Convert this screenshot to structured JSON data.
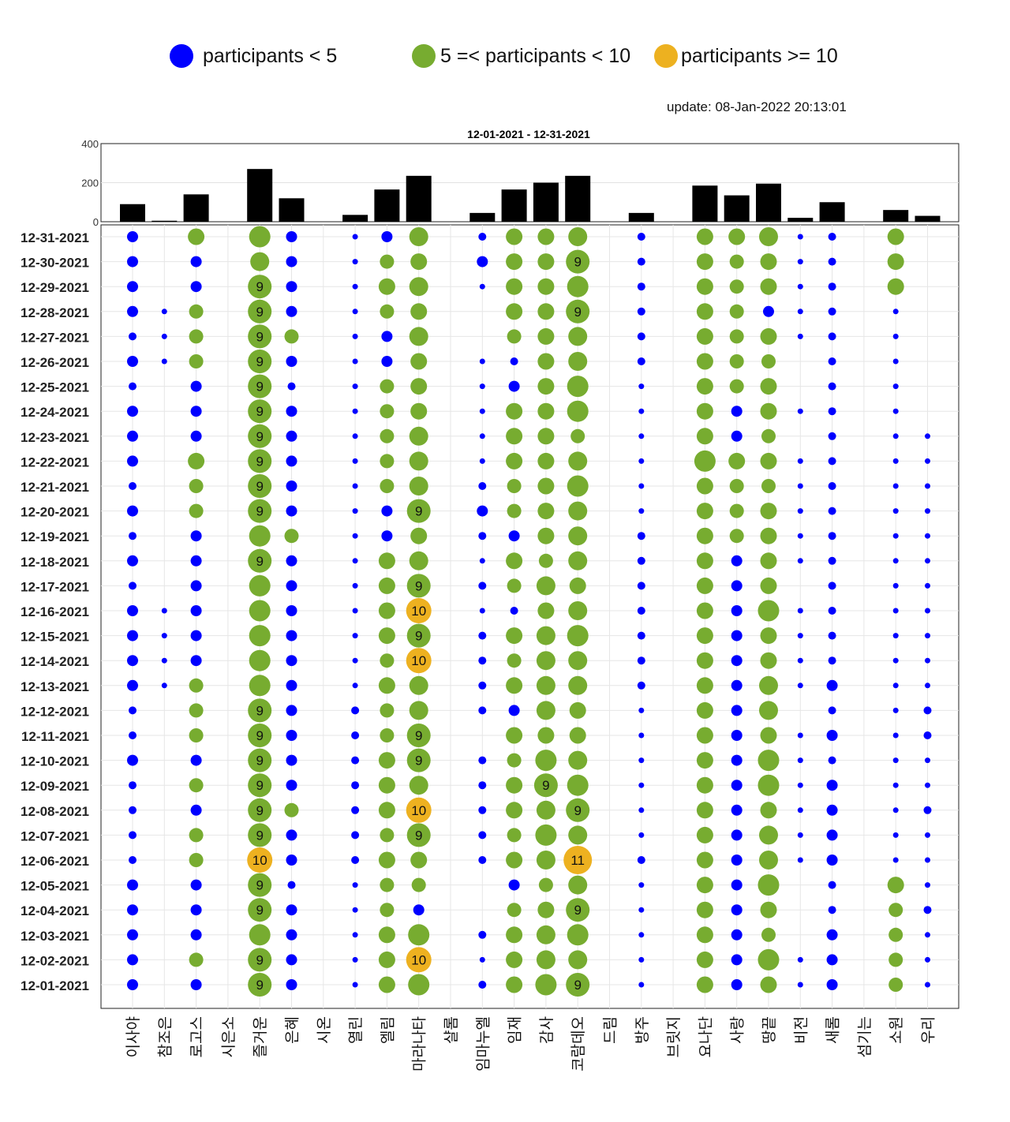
{
  "legend": {
    "blue": "participants < 5",
    "green": "5 =< participants < 10",
    "orange": "participants >= 10"
  },
  "colors": {
    "blue": "#0000ff",
    "green": "#77ac30",
    "orange": "#edb120",
    "bar": "#000000"
  },
  "update": "update: 08-Jan-2022 20:13:01",
  "chart_data": {
    "type": "scatter",
    "title": "12-01-2021  - 12-31-2021",
    "categories": [
      "이사야",
      "참조은",
      "로고스",
      "시은소",
      "즐거운",
      "은혜",
      "시온",
      "열린",
      "엘림",
      "마라나타",
      "샬롬",
      "임마누엘",
      "임재",
      "감사",
      "코람데오",
      "드림",
      "방주",
      "브릿지",
      "요나단",
      "사랑",
      "땅끝",
      "비전",
      "새롬",
      "섬기는",
      "소원",
      "우리"
    ],
    "totals": [
      90,
      5,
      140,
      0,
      270,
      120,
      0,
      35,
      165,
      235,
      0,
      45,
      165,
      200,
      235,
      0,
      45,
      0,
      185,
      135,
      195,
      20,
      100,
      0,
      60,
      30
    ],
    "bar_yticks": [
      0,
      200,
      400
    ],
    "bar_ylim": [
      0,
      400
    ],
    "dates": [
      "12-31-2021",
      "12-30-2021",
      "12-29-2021",
      "12-28-2021",
      "12-27-2021",
      "12-26-2021",
      "12-25-2021",
      "12-24-2021",
      "12-23-2021",
      "12-22-2021",
      "12-21-2021",
      "12-20-2021",
      "12-19-2021",
      "12-18-2021",
      "12-17-2021",
      "12-16-2021",
      "12-15-2021",
      "12-14-2021",
      "12-13-2021",
      "12-12-2021",
      "12-11-2021",
      "12-10-2021",
      "12-09-2021",
      "12-08-2021",
      "12-07-2021",
      "12-06-2021",
      "12-05-2021",
      "12-04-2021",
      "12-03-2021",
      "12-02-2021",
      "12-01-2021"
    ],
    "participants": [
      [
        3,
        0,
        6,
        0,
        8,
        3,
        0,
        1,
        3,
        7,
        0,
        2,
        6,
        6,
        7,
        0,
        2,
        0,
        6,
        6,
        7,
        1,
        2,
        0,
        6,
        0
      ],
      [
        3,
        0,
        3,
        0,
        7,
        3,
        0,
        1,
        5,
        6,
        0,
        3,
        6,
        6,
        9,
        0,
        2,
        0,
        6,
        5,
        6,
        1,
        2,
        0,
        6,
        0
      ],
      [
        3,
        0,
        3,
        0,
        9,
        3,
        0,
        1,
        6,
        7,
        0,
        1,
        6,
        6,
        8,
        0,
        2,
        0,
        6,
        5,
        6,
        1,
        2,
        0,
        6,
        0
      ],
      [
        3,
        1,
        5,
        0,
        9,
        3,
        0,
        1,
        5,
        6,
        0,
        0,
        6,
        6,
        9,
        0,
        2,
        0,
        6,
        5,
        3,
        1,
        2,
        0,
        1,
        0
      ],
      [
        2,
        1,
        5,
        0,
        9,
        5,
        0,
        1,
        3,
        7,
        0,
        0,
        5,
        6,
        7,
        0,
        2,
        0,
        6,
        5,
        6,
        1,
        2,
        0,
        1,
        0
      ],
      [
        3,
        1,
        5,
        0,
        9,
        3,
        0,
        1,
        3,
        6,
        0,
        1,
        2,
        6,
        7,
        0,
        2,
        0,
        6,
        5,
        5,
        0,
        2,
        0,
        1,
        0
      ],
      [
        2,
        0,
        3,
        0,
        9,
        2,
        0,
        1,
        5,
        6,
        0,
        1,
        3,
        6,
        8,
        0,
        1,
        0,
        6,
        5,
        6,
        0,
        2,
        0,
        1,
        0
      ],
      [
        3,
        0,
        3,
        0,
        9,
        3,
        0,
        1,
        5,
        6,
        0,
        1,
        6,
        6,
        8,
        0,
        1,
        0,
        6,
        3,
        6,
        1,
        2,
        0,
        1,
        0
      ],
      [
        3,
        0,
        3,
        0,
        9,
        3,
        0,
        1,
        5,
        7,
        0,
        1,
        6,
        6,
        5,
        0,
        1,
        0,
        6,
        3,
        5,
        0,
        2,
        0,
        1,
        1
      ],
      [
        3,
        0,
        6,
        0,
        9,
        3,
        0,
        1,
        5,
        7,
        0,
        1,
        6,
        6,
        7,
        0,
        1,
        0,
        8,
        6,
        6,
        1,
        2,
        0,
        1,
        1
      ],
      [
        2,
        0,
        5,
        0,
        9,
        3,
        0,
        1,
        5,
        7,
        0,
        2,
        5,
        6,
        8,
        0,
        1,
        0,
        6,
        5,
        5,
        1,
        2,
        0,
        1,
        1
      ],
      [
        3,
        0,
        5,
        0,
        9,
        3,
        0,
        1,
        3,
        9,
        0,
        3,
        5,
        6,
        7,
        0,
        1,
        0,
        6,
        5,
        6,
        1,
        2,
        0,
        1,
        1
      ],
      [
        2,
        0,
        3,
        0,
        8,
        5,
        0,
        1,
        3,
        6,
        0,
        2,
        3,
        6,
        7,
        0,
        2,
        0,
        6,
        5,
        6,
        1,
        2,
        0,
        1,
        1
      ],
      [
        3,
        0,
        3,
        0,
        9,
        3,
        0,
        1,
        6,
        7,
        0,
        1,
        6,
        5,
        7,
        0,
        2,
        0,
        6,
        3,
        6,
        1,
        2,
        0,
        1,
        1
      ],
      [
        2,
        0,
        3,
        0,
        8,
        3,
        0,
        1,
        6,
        9,
        0,
        2,
        5,
        7,
        6,
        0,
        2,
        0,
        6,
        3,
        6,
        0,
        2,
        0,
        1,
        1
      ],
      [
        3,
        1,
        3,
        0,
        8,
        3,
        0,
        1,
        6,
        10,
        0,
        1,
        2,
        6,
        7,
        0,
        2,
        0,
        6,
        3,
        8,
        1,
        2,
        0,
        1,
        1
      ],
      [
        3,
        1,
        3,
        0,
        8,
        3,
        0,
        1,
        6,
        9,
        0,
        2,
        6,
        7,
        8,
        0,
        2,
        0,
        6,
        3,
        6,
        1,
        2,
        0,
        1,
        1
      ],
      [
        3,
        1,
        3,
        0,
        8,
        3,
        0,
        1,
        5,
        10,
        0,
        2,
        5,
        7,
        7,
        0,
        2,
        0,
        6,
        3,
        6,
        1,
        2,
        0,
        1,
        1
      ],
      [
        3,
        1,
        5,
        0,
        8,
        3,
        0,
        1,
        6,
        7,
        0,
        2,
        6,
        7,
        7,
        0,
        2,
        0,
        6,
        3,
        7,
        1,
        3,
        0,
        1,
        1
      ],
      [
        2,
        0,
        5,
        0,
        9,
        3,
        0,
        2,
        5,
        7,
        0,
        2,
        3,
        7,
        6,
        0,
        1,
        0,
        6,
        3,
        7,
        0,
        2,
        0,
        1,
        2
      ],
      [
        2,
        0,
        5,
        0,
        9,
        3,
        0,
        2,
        5,
        9,
        0,
        0,
        6,
        6,
        6,
        0,
        1,
        0,
        6,
        3,
        6,
        1,
        3,
        0,
        1,
        2
      ],
      [
        3,
        0,
        3,
        0,
        9,
        3,
        0,
        2,
        6,
        9,
        0,
        2,
        5,
        8,
        7,
        0,
        1,
        0,
        6,
        3,
        8,
        1,
        2,
        0,
        1,
        1
      ],
      [
        2,
        0,
        5,
        0,
        9,
        3,
        0,
        2,
        6,
        7,
        0,
        2,
        6,
        9,
        8,
        0,
        1,
        0,
        6,
        3,
        8,
        1,
        3,
        0,
        1,
        1
      ],
      [
        2,
        0,
        3,
        0,
        9,
        5,
        0,
        2,
        6,
        10,
        0,
        2,
        6,
        7,
        9,
        0,
        1,
        0,
        6,
        3,
        6,
        1,
        3,
        0,
        1,
        2
      ],
      [
        2,
        0,
        5,
        0,
        9,
        3,
        0,
        2,
        5,
        9,
        0,
        2,
        5,
        8,
        7,
        0,
        1,
        0,
        6,
        3,
        7,
        1,
        3,
        0,
        1,
        1
      ],
      [
        2,
        0,
        5,
        0,
        10,
        3,
        0,
        2,
        6,
        6,
        0,
        2,
        6,
        7,
        11,
        0,
        2,
        0,
        6,
        3,
        7,
        1,
        3,
        0,
        1,
        1
      ],
      [
        3,
        0,
        3,
        0,
        9,
        2,
        0,
        1,
        5,
        5,
        0,
        0,
        3,
        5,
        7,
        0,
        1,
        0,
        6,
        3,
        8,
        0,
        2,
        0,
        6,
        1
      ],
      [
        3,
        0,
        3,
        0,
        9,
        3,
        0,
        1,
        5,
        3,
        0,
        0,
        5,
        6,
        9,
        0,
        1,
        0,
        6,
        3,
        6,
        0,
        2,
        0,
        5,
        2
      ],
      [
        3,
        0,
        3,
        0,
        8,
        3,
        0,
        1,
        6,
        8,
        0,
        2,
        6,
        7,
        8,
        0,
        1,
        0,
        6,
        3,
        5,
        0,
        3,
        0,
        5,
        1
      ],
      [
        3,
        0,
        5,
        0,
        9,
        3,
        0,
        1,
        6,
        10,
        0,
        1,
        6,
        7,
        7,
        0,
        1,
        0,
        6,
        3,
        8,
        1,
        3,
        0,
        5,
        1
      ],
      [
        3,
        0,
        3,
        0,
        9,
        3,
        0,
        1,
        6,
        8,
        0,
        2,
        6,
        8,
        9,
        0,
        1,
        0,
        6,
        3,
        6,
        1,
        3,
        0,
        5,
        1
      ]
    ],
    "label_threshold": 9
  }
}
